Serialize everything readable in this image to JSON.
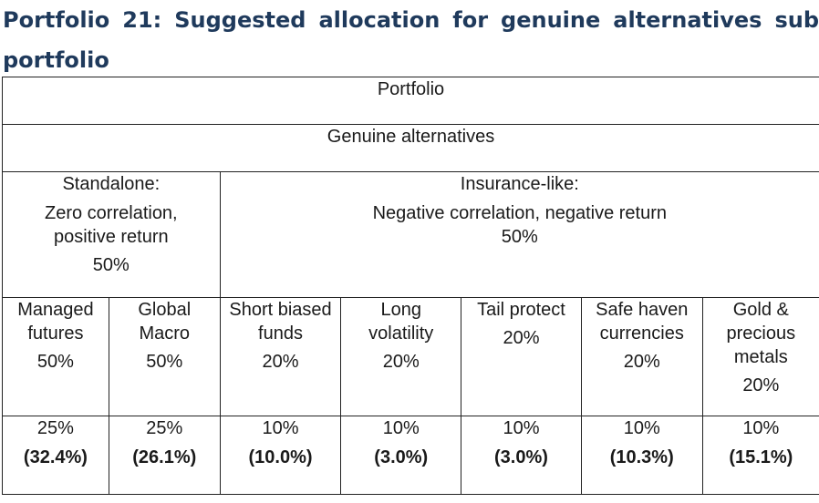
{
  "title": {
    "line1": "Portfolio 21: Suggested allocation for genuine alternatives sub",
    "line2": "portfolio"
  },
  "header": {
    "portfolio": "Portfolio",
    "genuine_alternatives": "Genuine alternatives"
  },
  "groups": {
    "standalone": {
      "label": "Standalone:",
      "desc1": "Zero correlation,",
      "desc2": "positive return",
      "pct": "50%"
    },
    "insurance": {
      "label": "Insurance-like:",
      "desc1": "Negative correlation, negative return",
      "pct": "50%"
    }
  },
  "strategies": [
    {
      "l1": "Managed",
      "l2": "futures",
      "l3": "",
      "pct": "50%",
      "alloc": "25%",
      "actual": "(32.4%)"
    },
    {
      "l1": "Global",
      "l2": "Macro",
      "l3": "",
      "pct": "50%",
      "alloc": "25%",
      "actual": "(26.1%)"
    },
    {
      "l1": "Short biased",
      "l2": "funds",
      "l3": "",
      "pct": "20%",
      "alloc": "10%",
      "actual": "(10.0%)"
    },
    {
      "l1": "Long",
      "l2": "volatility",
      "l3": "",
      "pct": "20%",
      "alloc": "10%",
      "actual": "(3.0%)"
    },
    {
      "l1": "Tail protect",
      "l2": "",
      "l3": "",
      "pct": "20%",
      "alloc": "10%",
      "actual": "(3.0%)"
    },
    {
      "l1": "Safe haven",
      "l2": "currencies",
      "l3": "",
      "pct": "20%",
      "alloc": "10%",
      "actual": "(10.3%)"
    },
    {
      "l1": "Gold &",
      "l2": "precious",
      "l3": "metals",
      "pct": "20%",
      "alloc": "10%",
      "actual": "(15.1%)"
    }
  ]
}
